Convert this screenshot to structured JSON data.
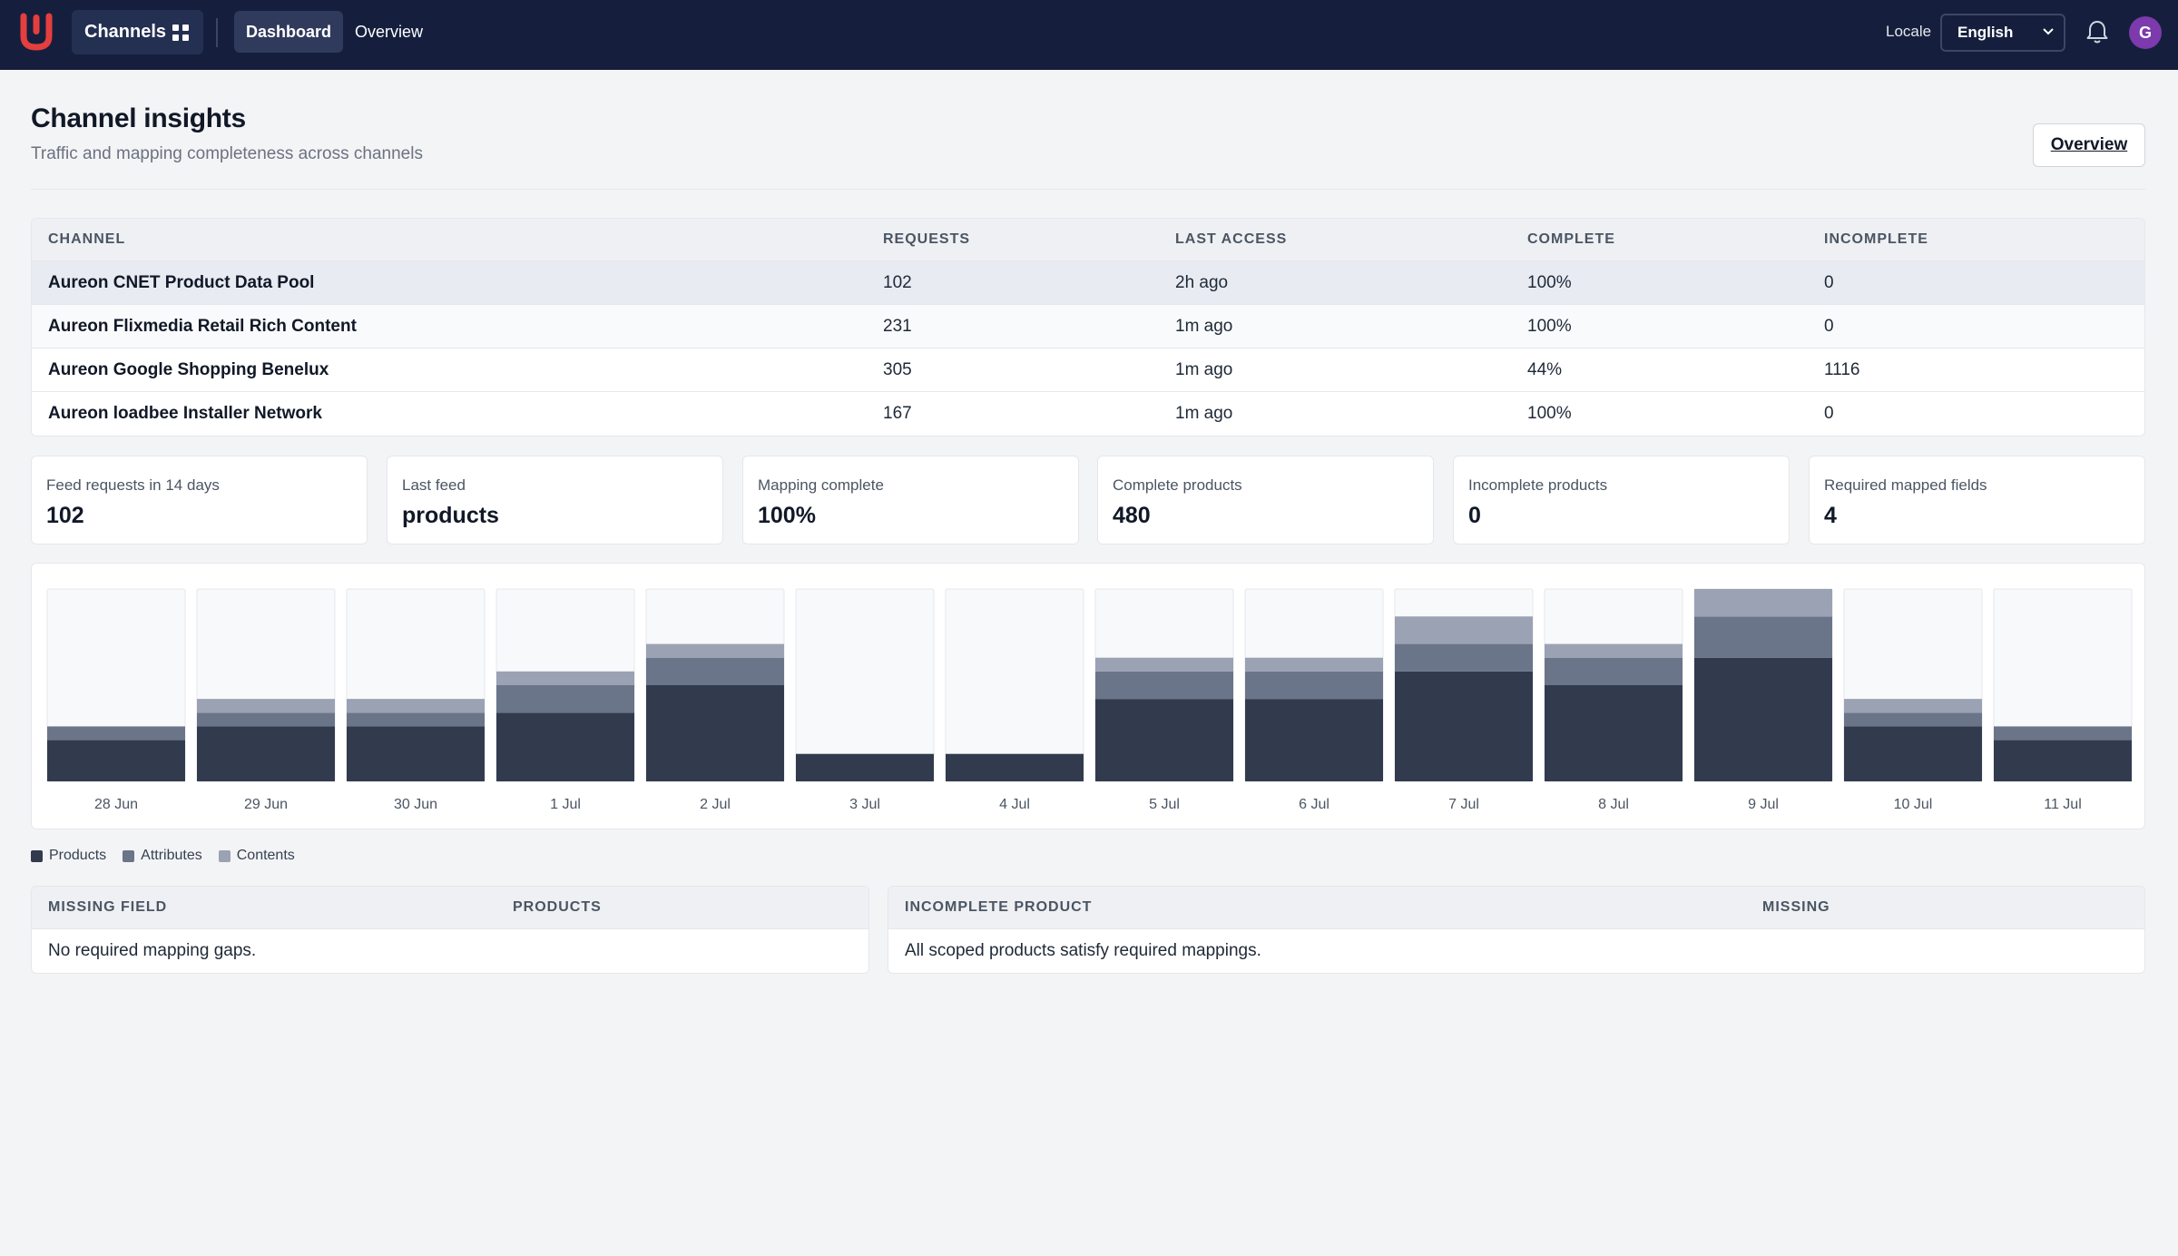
{
  "nav": {
    "channels_label": "Channels",
    "tabs": [
      {
        "label": "Dashboard",
        "active": true
      },
      {
        "label": "Overview",
        "active": false
      }
    ],
    "locale_label": "Locale",
    "locale_value": "English",
    "avatar_initial": "G",
    "brand_color": "#e53e3e",
    "bar_color": "#151f3d"
  },
  "page": {
    "title": "Channel insights",
    "subtitle": "Traffic and mapping completeness across channels",
    "overview_button": "Overview"
  },
  "channels_table": {
    "headers": {
      "channel": "CHANNEL",
      "requests": "REQUESTS",
      "last_access": "LAST ACCESS",
      "complete": "COMPLETE",
      "incomplete": "INCOMPLETE"
    },
    "rows": [
      {
        "channel": "Aureon CNET Product Data Pool",
        "requests": "102",
        "last_access": "2h ago",
        "complete": "100%",
        "incomplete": "0"
      },
      {
        "channel": "Aureon Flixmedia Retail Rich Content",
        "requests": "231",
        "last_access": "1m ago",
        "complete": "100%",
        "incomplete": "0"
      },
      {
        "channel": "Aureon Google Shopping Benelux",
        "requests": "305",
        "last_access": "1m ago",
        "complete": "44%",
        "incomplete": "1116"
      },
      {
        "channel": "Aureon loadbee Installer Network",
        "requests": "167",
        "last_access": "1m ago",
        "complete": "100%",
        "incomplete": "0"
      }
    ]
  },
  "stats": [
    {
      "label": "Feed requests in 14 days",
      "value": "102"
    },
    {
      "label": "Last feed",
      "value": "products"
    },
    {
      "label": "Mapping complete",
      "value": "100%"
    },
    {
      "label": "Complete products",
      "value": "480"
    },
    {
      "label": "Incomplete products",
      "value": "0"
    },
    {
      "label": "Required mapped fields",
      "value": "4"
    }
  ],
  "chart_data": {
    "type": "bar",
    "stacked": true,
    "categories": [
      "28 Jun",
      "29 Jun",
      "30 Jun",
      "1 Jul",
      "2 Jul",
      "3 Jul",
      "4 Jul",
      "5 Jul",
      "6 Jul",
      "7 Jul",
      "8 Jul",
      "9 Jul",
      "10 Jul",
      "11 Jul"
    ],
    "series": [
      {
        "name": "Products",
        "color": "#323b4e",
        "values": [
          3,
          4,
          4,
          5,
          7,
          2,
          2,
          6,
          6,
          8,
          7,
          9,
          4,
          3
        ]
      },
      {
        "name": "Attributes",
        "color": "#6b7589",
        "values": [
          1,
          1,
          1,
          2,
          2,
          0,
          0,
          2,
          2,
          2,
          2,
          3,
          1,
          1
        ]
      },
      {
        "name": "Contents",
        "color": "#9aa2b3",
        "values": [
          0,
          1,
          1,
          1,
          1,
          0,
          0,
          1,
          1,
          2,
          1,
          2,
          1,
          0
        ]
      }
    ],
    "ylim": [
      0,
      14
    ],
    "grid": false,
    "legend_position": "bottom-left"
  },
  "missing_table": {
    "headers": {
      "field": "MISSING FIELD",
      "products": "PRODUCTS"
    },
    "empty_text": "No required mapping gaps."
  },
  "incomplete_table": {
    "headers": {
      "product": "INCOMPLETE PRODUCT",
      "missing": "MISSING"
    },
    "empty_text": "All scoped products satisfy required mappings."
  }
}
